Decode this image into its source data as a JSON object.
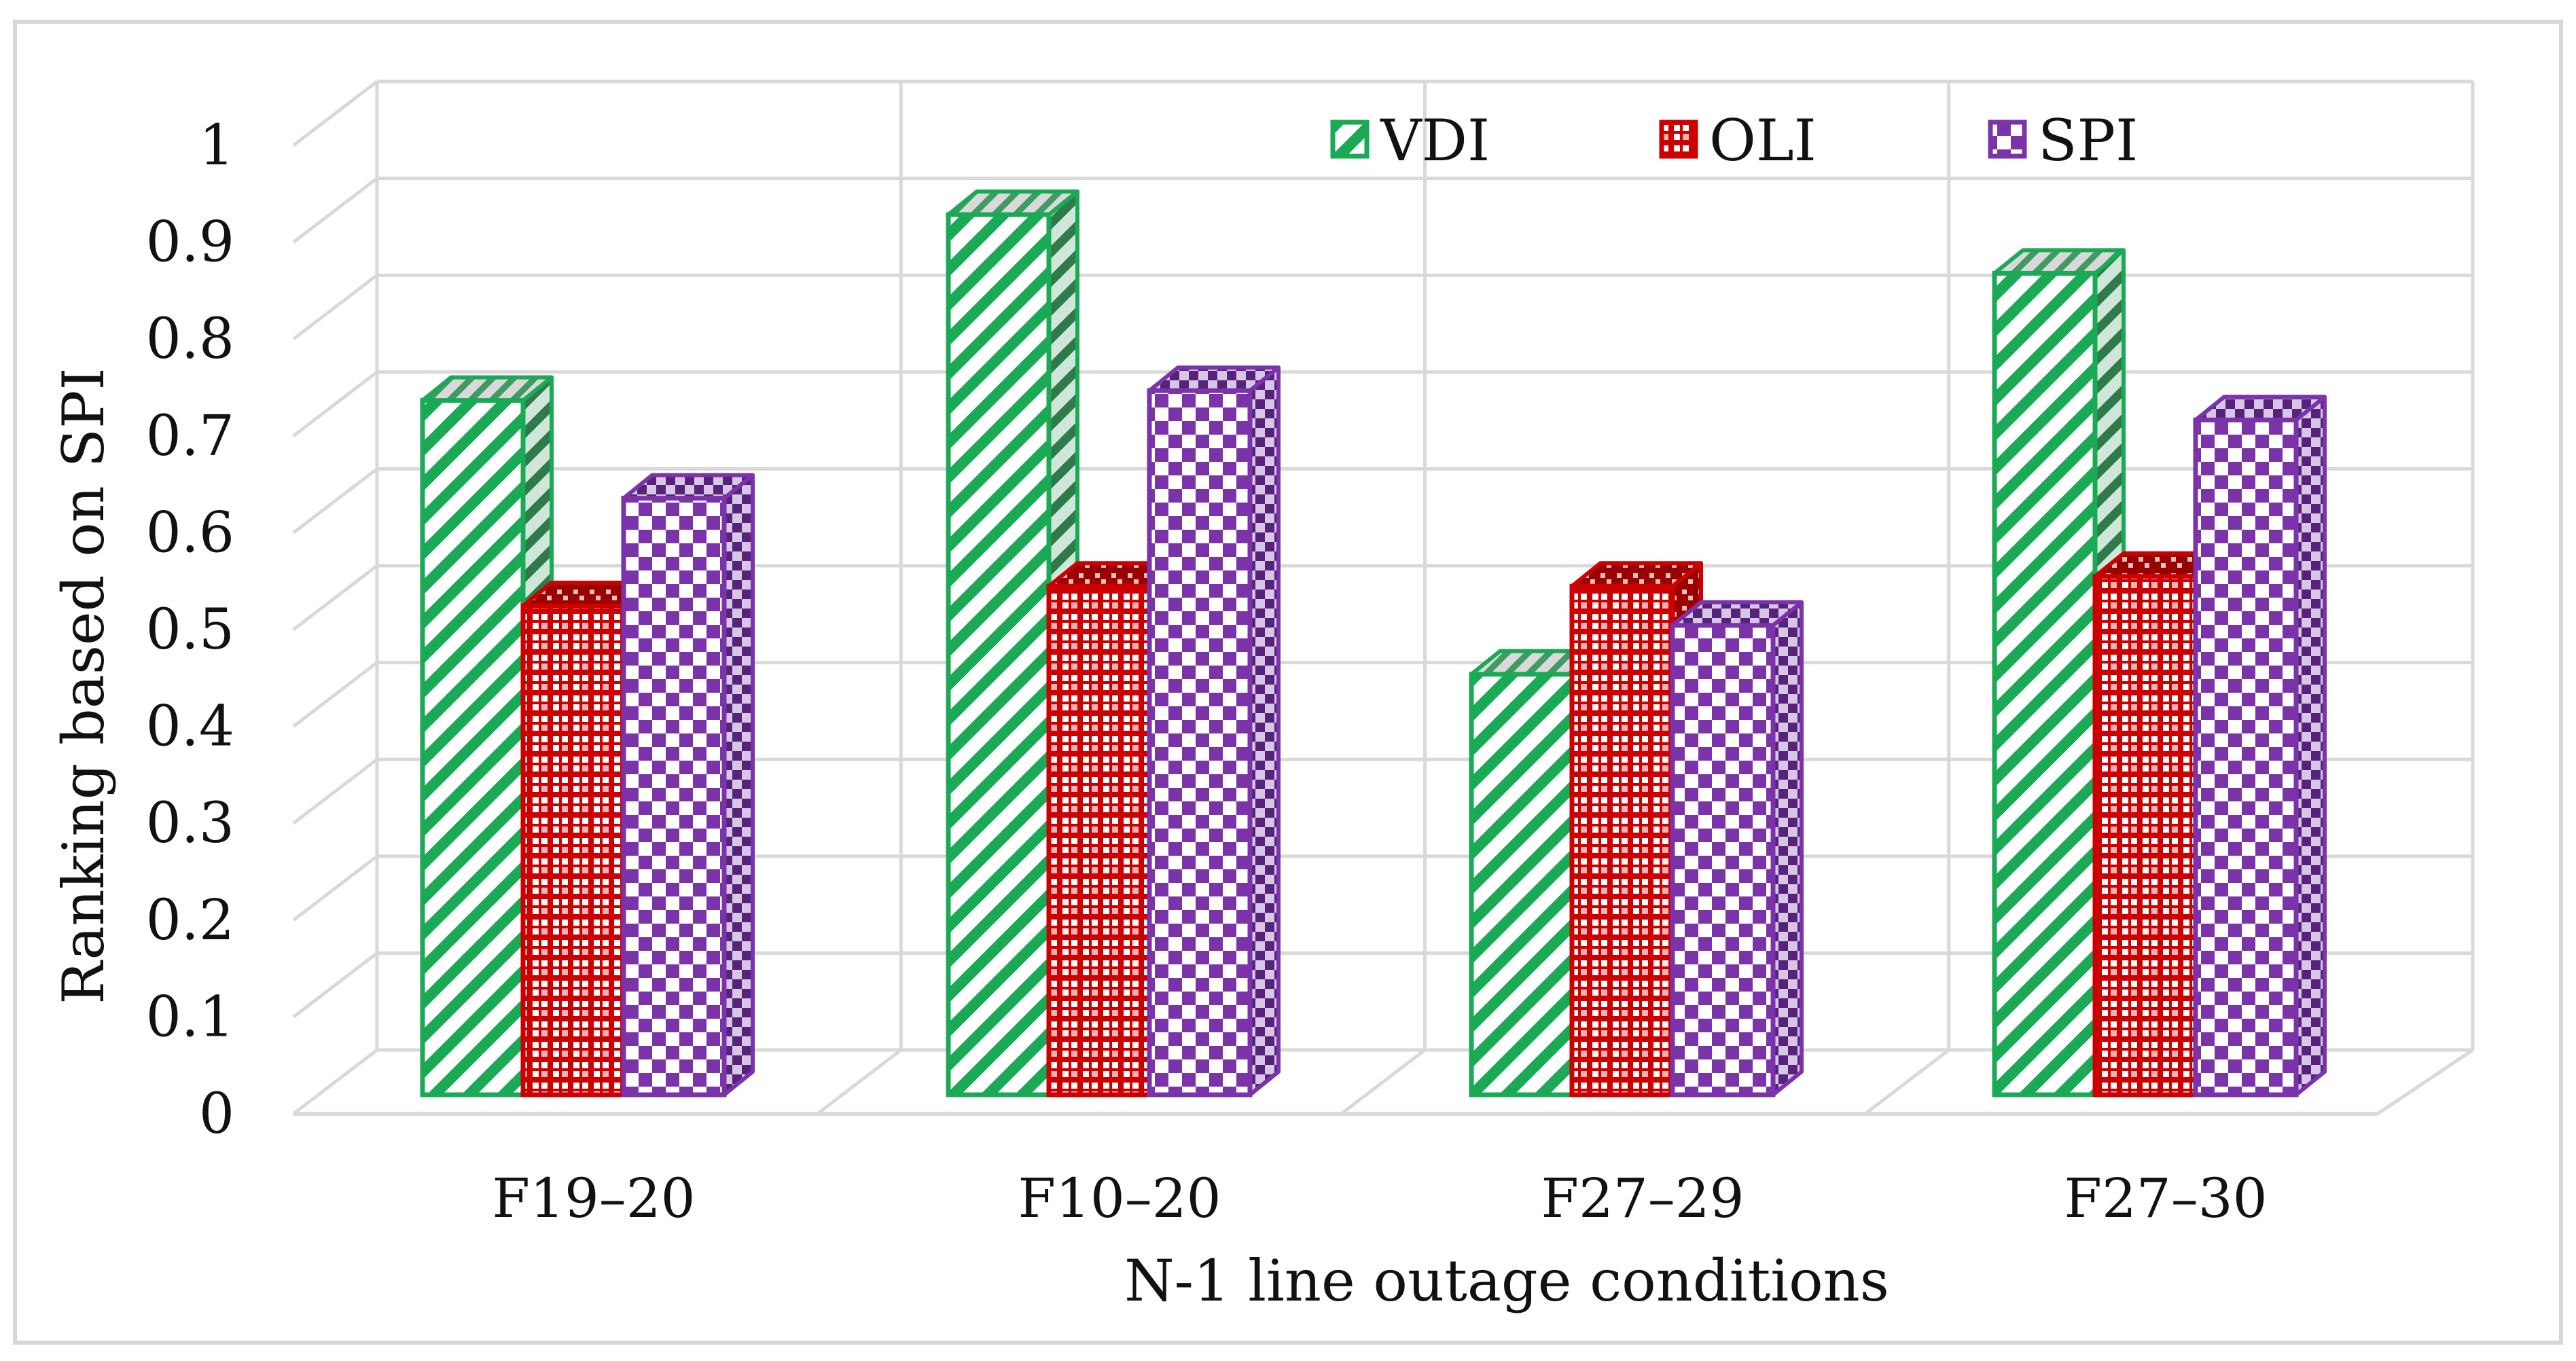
{
  "chart_data": {
    "type": "bar",
    "style": "3d-clustered",
    "title": "",
    "xlabel": "N-1 line outage conditions",
    "ylabel": "Ranking based on SPI",
    "ylim": [
      0,
      1
    ],
    "yticks": [
      0,
      0.1,
      0.2,
      0.3,
      0.4,
      0.5,
      0.6,
      0.7,
      0.8,
      0.9,
      1
    ],
    "ytick_labels": [
      "0",
      "0.1",
      "0.2",
      "0.3",
      "0.4",
      "0.5",
      "0.6",
      "0.7",
      "0.8",
      "0.9",
      "1"
    ],
    "grid": true,
    "legend_position": "top-right",
    "categories": [
      "F19–20",
      "F10–20",
      "F27–29",
      "F27–30"
    ],
    "series": [
      {
        "name": "VDI",
        "color": "#1aaa55",
        "pattern": "diagonal-stripes",
        "values": [
          0.71,
          0.9,
          0.43,
          0.84
        ]
      },
      {
        "name": "OLI",
        "color": "#cc0000",
        "pattern": "dotted-grid",
        "values": [
          0.5,
          0.52,
          0.52,
          0.53
        ]
      },
      {
        "name": "SPI",
        "color": "#7a33a8",
        "pattern": "checkerboard",
        "values": [
          0.61,
          0.72,
          0.48,
          0.69
        ]
      }
    ]
  }
}
